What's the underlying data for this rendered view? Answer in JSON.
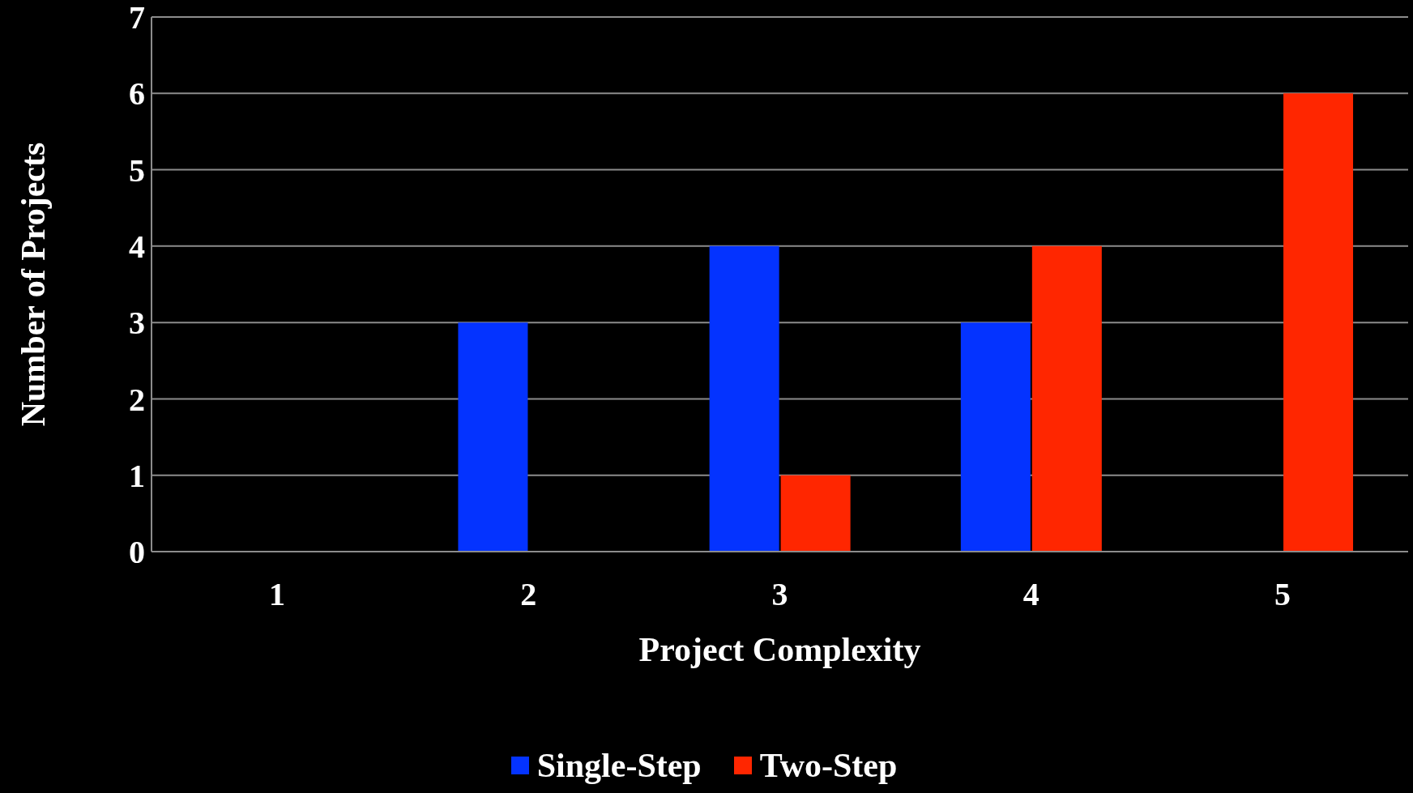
{
  "chart_data": {
    "type": "bar",
    "xlabel": "Project Complexity",
    "ylabel": "Number of Projects",
    "categories": [
      "1",
      "2",
      "3",
      "4",
      "5"
    ],
    "series": [
      {
        "name": "Single-Step",
        "color": "#0433ff",
        "values": [
          0,
          3,
          4,
          3,
          0
        ]
      },
      {
        "name": "Two-Step",
        "color": "#ff2600",
        "values": [
          0,
          0,
          1,
          4,
          6
        ]
      }
    ],
    "ylim": [
      0,
      7
    ],
    "yticks": [
      0,
      1,
      2,
      3,
      4,
      5,
      6,
      7
    ],
    "grid": "y",
    "legend": "bottom"
  }
}
